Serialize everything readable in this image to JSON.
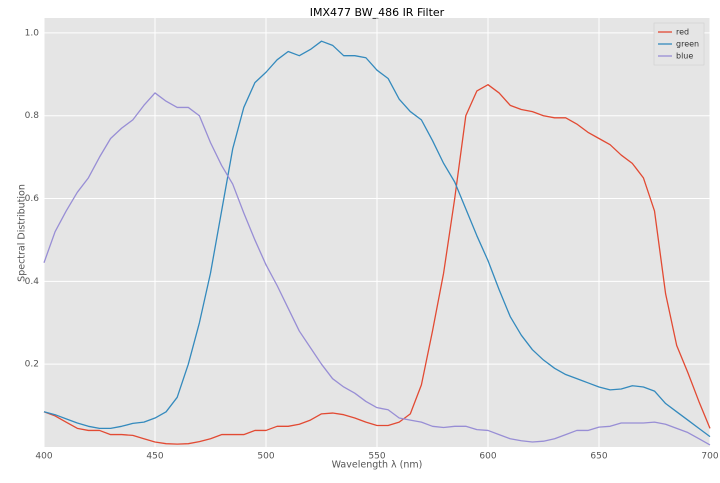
{
  "chart_data": {
    "type": "line",
    "title": "IMX477 BW_486 IR Filter",
    "x_label": "Wavelength λ (nm)",
    "y_label": "Spectral Distribution",
    "x": [
      400,
      405,
      410,
      415,
      420,
      425,
      430,
      435,
      440,
      445,
      450,
      455,
      460,
      465,
      470,
      475,
      480,
      485,
      490,
      495,
      500,
      505,
      510,
      515,
      520,
      525,
      530,
      535,
      540,
      545,
      550,
      555,
      560,
      565,
      570,
      575,
      580,
      585,
      590,
      595,
      600,
      605,
      610,
      615,
      620,
      625,
      630,
      635,
      640,
      645,
      650,
      655,
      660,
      665,
      670,
      675,
      680,
      685,
      690,
      695,
      700
    ],
    "series": [
      {
        "name": "red",
        "color": "#E24A33",
        "values": [
          0.085,
          0.075,
          0.06,
          0.045,
          0.04,
          0.04,
          0.03,
          0.03,
          0.028,
          0.02,
          0.012,
          0.008,
          0.007,
          0.008,
          0.013,
          0.02,
          0.03,
          0.03,
          0.03,
          0.04,
          0.04,
          0.05,
          0.05,
          0.055,
          0.065,
          0.08,
          0.082,
          0.078,
          0.07,
          0.06,
          0.052,
          0.052,
          0.06,
          0.08,
          0.15,
          0.28,
          0.42,
          0.6,
          0.8,
          0.86,
          0.875,
          0.855,
          0.825,
          0.815,
          0.81,
          0.8,
          0.795,
          0.795,
          0.78,
          0.76,
          0.745,
          0.73,
          0.705,
          0.685,
          0.65,
          0.57,
          0.37,
          0.245,
          0.18,
          0.11,
          0.045
        ]
      },
      {
        "name": "green",
        "color": "#348ABD",
        "values": [
          0.085,
          0.078,
          0.068,
          0.058,
          0.05,
          0.045,
          0.045,
          0.05,
          0.057,
          0.06,
          0.07,
          0.085,
          0.12,
          0.2,
          0.3,
          0.42,
          0.57,
          0.72,
          0.82,
          0.88,
          0.905,
          0.935,
          0.955,
          0.945,
          0.96,
          0.98,
          0.97,
          0.945,
          0.945,
          0.94,
          0.91,
          0.89,
          0.84,
          0.81,
          0.79,
          0.74,
          0.685,
          0.64,
          0.575,
          0.51,
          0.45,
          0.38,
          0.315,
          0.27,
          0.235,
          0.21,
          0.19,
          0.175,
          0.165,
          0.155,
          0.145,
          0.138,
          0.14,
          0.148,
          0.145,
          0.135,
          0.105,
          0.085,
          0.065,
          0.045,
          0.025
        ]
      },
      {
        "name": "blue",
        "color": "#988ED5",
        "values": [
          0.445,
          0.52,
          0.57,
          0.615,
          0.65,
          0.7,
          0.745,
          0.77,
          0.79,
          0.825,
          0.855,
          0.835,
          0.82,
          0.82,
          0.8,
          0.735,
          0.68,
          0.635,
          0.565,
          0.5,
          0.44,
          0.39,
          0.335,
          0.28,
          0.24,
          0.2,
          0.165,
          0.145,
          0.13,
          0.11,
          0.095,
          0.09,
          0.07,
          0.065,
          0.06,
          0.05,
          0.047,
          0.05,
          0.05,
          0.042,
          0.04,
          0.03,
          0.02,
          0.015,
          0.012,
          0.014,
          0.02,
          0.03,
          0.04,
          0.04,
          0.048,
          0.05,
          0.058,
          0.058,
          0.058,
          0.06,
          0.055,
          0.045,
          0.035,
          0.02,
          0.005
        ]
      }
    ],
    "xlim": [
      400,
      700
    ],
    "ylim": [
      0,
      1.036
    ],
    "xticks": [
      400,
      450,
      500,
      550,
      600,
      650,
      700
    ],
    "yticks": [
      0.2,
      0.4,
      0.6,
      0.8,
      {
        "value": 1,
        "label": "1.0"
      }
    ],
    "grid": true,
    "legend": "upper right",
    "background": "#E5E5E5"
  }
}
